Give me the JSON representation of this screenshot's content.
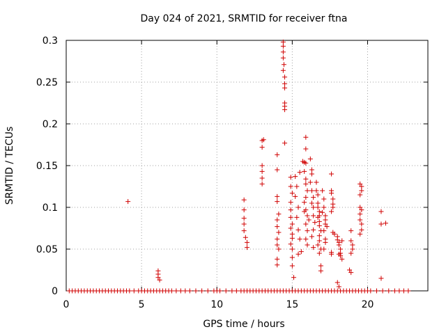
{
  "chart_data": {
    "type": "scatter",
    "title": "Day 024 of 2021, SRMTID for receiver ftna",
    "xlabel": "GPS time / hours",
    "ylabel": "SRMTID / TECUs",
    "xlim": [
      0,
      24
    ],
    "ylim": [
      0,
      0.3
    ],
    "xticks": [
      0,
      5,
      10,
      15,
      20
    ],
    "yticks": [
      0,
      0.05,
      0.1,
      0.15,
      0.2,
      0.25,
      0.3
    ],
    "xtick_labels": [
      "0",
      "5",
      "10",
      "15",
      "20"
    ],
    "ytick_labels": [
      "0",
      "0.05",
      "0.1",
      "0.15",
      "0.2",
      "0.25",
      "0.3"
    ],
    "grid": true,
    "marker": "+",
    "series": [
      {
        "name": "SRMTID",
        "color": "#d00000",
        "points": [
          [
            0.2,
            0
          ],
          [
            0.4,
            0
          ],
          [
            0.6,
            0
          ],
          [
            0.8,
            0
          ],
          [
            1.0,
            0
          ],
          [
            1.2,
            0
          ],
          [
            1.4,
            0
          ],
          [
            1.6,
            0
          ],
          [
            1.8,
            0
          ],
          [
            2.0,
            0
          ],
          [
            2.2,
            0
          ],
          [
            2.4,
            0
          ],
          [
            2.6,
            0
          ],
          [
            2.8,
            0
          ],
          [
            3.0,
            0
          ],
          [
            3.2,
            0
          ],
          [
            3.4,
            0
          ],
          [
            3.6,
            0
          ],
          [
            3.8,
            0
          ],
          [
            4.0,
            0
          ],
          [
            4.2,
            0
          ],
          [
            4.5,
            0
          ],
          [
            4.8,
            0
          ],
          [
            5.0,
            0
          ],
          [
            5.2,
            0
          ],
          [
            5.4,
            0
          ],
          [
            5.6,
            0
          ],
          [
            5.8,
            0
          ],
          [
            6.0,
            0
          ],
          [
            6.2,
            0
          ],
          [
            6.4,
            0
          ],
          [
            6.6,
            0
          ],
          [
            6.8,
            0
          ],
          [
            7.0,
            0
          ],
          [
            7.3,
            0
          ],
          [
            7.6,
            0
          ],
          [
            7.9,
            0
          ],
          [
            8.2,
            0
          ],
          [
            8.6,
            0
          ],
          [
            9.0,
            0
          ],
          [
            9.4,
            0
          ],
          [
            9.8,
            0
          ],
          [
            10.0,
            0
          ],
          [
            10.2,
            0
          ],
          [
            10.6,
            0
          ],
          [
            11.0,
            0
          ],
          [
            11.3,
            0
          ],
          [
            11.6,
            0
          ],
          [
            11.8,
            0
          ],
          [
            12.0,
            0
          ],
          [
            12.2,
            0
          ],
          [
            12.4,
            0
          ],
          [
            12.6,
            0
          ],
          [
            12.8,
            0
          ],
          [
            13.0,
            0
          ],
          [
            13.2,
            0
          ],
          [
            13.4,
            0
          ],
          [
            13.6,
            0
          ],
          [
            13.8,
            0
          ],
          [
            14.0,
            0
          ],
          [
            14.2,
            0
          ],
          [
            14.4,
            0
          ],
          [
            14.6,
            0
          ],
          [
            14.8,
            0
          ],
          [
            15.0,
            0
          ],
          [
            15.2,
            0
          ],
          [
            15.4,
            0
          ],
          [
            15.6,
            0
          ],
          [
            15.8,
            0
          ],
          [
            16.0,
            0
          ],
          [
            16.2,
            0
          ],
          [
            16.4,
            0
          ],
          [
            16.6,
            0
          ],
          [
            16.8,
            0
          ],
          [
            17.0,
            0
          ],
          [
            17.2,
            0
          ],
          [
            17.4,
            0
          ],
          [
            17.6,
            0
          ],
          [
            17.8,
            0
          ],
          [
            18.0,
            0
          ],
          [
            18.2,
            0
          ],
          [
            18.4,
            0
          ],
          [
            18.6,
            0
          ],
          [
            18.8,
            0
          ],
          [
            19.0,
            0
          ],
          [
            19.2,
            0
          ],
          [
            19.4,
            0
          ],
          [
            19.6,
            0
          ],
          [
            19.8,
            0
          ],
          [
            20.0,
            0
          ],
          [
            20.2,
            0
          ],
          [
            20.6,
            0
          ],
          [
            21.0,
            0
          ],
          [
            21.4,
            0
          ],
          [
            21.8,
            0
          ],
          [
            22.1,
            0
          ],
          [
            22.4,
            0
          ],
          [
            22.7,
            0
          ],
          [
            4.1,
            0.107
          ],
          [
            6.1,
            0.024
          ],
          [
            6.1,
            0.02
          ],
          [
            6.1,
            0.016
          ],
          [
            6.2,
            0.013
          ],
          [
            11.8,
            0.109
          ],
          [
            11.8,
            0.097
          ],
          [
            11.8,
            0.087
          ],
          [
            11.8,
            0.08
          ],
          [
            11.8,
            0.072
          ],
          [
            11.9,
            0.064
          ],
          [
            12.0,
            0.058
          ],
          [
            12.0,
            0.052
          ],
          [
            13.0,
            0.18
          ],
          [
            13.1,
            0.181
          ],
          [
            13.0,
            0.172
          ],
          [
            13.0,
            0.15
          ],
          [
            13.0,
            0.143
          ],
          [
            13.0,
            0.135
          ],
          [
            13.0,
            0.128
          ],
          [
            14.0,
            0.163
          ],
          [
            14.0,
            0.145
          ],
          [
            14.0,
            0.113
          ],
          [
            14.0,
            0.107
          ],
          [
            14.1,
            0.092
          ],
          [
            14.0,
            0.085
          ],
          [
            14.0,
            0.077
          ],
          [
            14.1,
            0.07
          ],
          [
            14.0,
            0.062
          ],
          [
            14.0,
            0.055
          ],
          [
            14.1,
            0.05
          ],
          [
            14.0,
            0.038
          ],
          [
            14.0,
            0.031
          ],
          [
            14.4,
            0.298
          ],
          [
            14.4,
            0.293
          ],
          [
            14.4,
            0.286
          ],
          [
            14.4,
            0.279
          ],
          [
            14.45,
            0.271
          ],
          [
            14.4,
            0.264
          ],
          [
            14.5,
            0.256
          ],
          [
            14.5,
            0.248
          ],
          [
            14.5,
            0.243
          ],
          [
            14.5,
            0.225
          ],
          [
            14.5,
            0.221
          ],
          [
            14.5,
            0.217
          ],
          [
            14.5,
            0.177
          ],
          [
            14.9,
            0.136
          ],
          [
            14.9,
            0.125
          ],
          [
            15.0,
            0.117
          ],
          [
            14.9,
            0.106
          ],
          [
            14.9,
            0.097
          ],
          [
            14.9,
            0.088
          ],
          [
            15.0,
            0.08
          ],
          [
            14.9,
            0.075
          ],
          [
            15.0,
            0.068
          ],
          [
            15.0,
            0.063
          ],
          [
            14.9,
            0.056
          ],
          [
            15.0,
            0.05
          ],
          [
            15.0,
            0.04
          ],
          [
            15.0,
            0.03
          ],
          [
            15.1,
            0.016
          ],
          [
            15.2,
            0.137
          ],
          [
            15.3,
            0.125
          ],
          [
            15.2,
            0.113
          ],
          [
            15.4,
            0.1
          ],
          [
            15.3,
            0.088
          ],
          [
            15.4,
            0.073
          ],
          [
            15.5,
            0.062
          ],
          [
            15.6,
            0.047
          ],
          [
            15.4,
            0.044
          ],
          [
            15.5,
            0.142
          ],
          [
            15.7,
            0.155
          ],
          [
            15.8,
            0.154
          ],
          [
            15.9,
            0.153
          ],
          [
            15.8,
            0.143
          ],
          [
            15.9,
            0.134
          ],
          [
            15.9,
            0.128
          ],
          [
            16.0,
            0.12
          ],
          [
            15.9,
            0.112
          ],
          [
            15.8,
            0.106
          ],
          [
            15.9,
            0.097
          ],
          [
            16.0,
            0.09
          ],
          [
            15.9,
            0.08
          ],
          [
            16.0,
            0.072
          ],
          [
            15.9,
            0.062
          ],
          [
            16.0,
            0.055
          ],
          [
            15.9,
            0.184
          ],
          [
            15.9,
            0.17
          ],
          [
            15.8,
            0.095
          ],
          [
            16.1,
            0.085
          ],
          [
            16.2,
            0.158
          ],
          [
            16.3,
            0.145
          ],
          [
            16.3,
            0.14
          ],
          [
            16.2,
            0.13
          ],
          [
            16.3,
            0.12
          ],
          [
            16.4,
            0.112
          ],
          [
            16.3,
            0.105
          ],
          [
            16.4,
            0.1
          ],
          [
            16.4,
            0.09
          ],
          [
            16.5,
            0.082
          ],
          [
            16.4,
            0.073
          ],
          [
            16.3,
            0.065
          ],
          [
            16.4,
            0.052
          ],
          [
            16.6,
            0.13
          ],
          [
            16.6,
            0.12
          ],
          [
            16.7,
            0.115
          ],
          [
            16.7,
            0.105
          ],
          [
            16.7,
            0.1
          ],
          [
            16.8,
            0.095
          ],
          [
            16.8,
            0.09
          ],
          [
            16.7,
            0.088
          ],
          [
            16.8,
            0.083
          ],
          [
            16.8,
            0.078
          ],
          [
            16.9,
            0.072
          ],
          [
            16.8,
            0.066
          ],
          [
            16.8,
            0.06
          ],
          [
            16.7,
            0.055
          ],
          [
            16.9,
            0.05
          ],
          [
            16.8,
            0.045
          ],
          [
            16.9,
            0.03
          ],
          [
            16.9,
            0.024
          ],
          [
            17.0,
            0.12
          ],
          [
            17.1,
            0.11
          ],
          [
            17.1,
            0.1
          ],
          [
            17.0,
            0.094
          ],
          [
            17.2,
            0.09
          ],
          [
            17.2,
            0.085
          ],
          [
            17.2,
            0.08
          ],
          [
            17.3,
            0.077
          ],
          [
            17.1,
            0.072
          ],
          [
            17.2,
            0.062
          ],
          [
            17.2,
            0.058
          ],
          [
            17.1,
            0.05
          ],
          [
            17.6,
            0.14
          ],
          [
            17.6,
            0.12
          ],
          [
            17.6,
            0.117
          ],
          [
            17.7,
            0.11
          ],
          [
            17.7,
            0.104
          ],
          [
            17.7,
            0.1
          ],
          [
            17.6,
            0.095
          ],
          [
            17.7,
            0.07
          ],
          [
            17.8,
            0.068
          ],
          [
            17.6,
            0.046
          ],
          [
            17.6,
            0.044
          ],
          [
            18.0,
            0.061
          ],
          [
            18.1,
            0.058
          ],
          [
            18.1,
            0.055
          ],
          [
            18.2,
            0.05
          ],
          [
            18.2,
            0.045
          ],
          [
            18.3,
            0.06
          ],
          [
            18.1,
            0.044
          ],
          [
            18.2,
            0.042
          ],
          [
            18.3,
            0.038
          ],
          [
            18.0,
            0.065
          ],
          [
            18.0,
            0.01
          ],
          [
            18.1,
            0.005
          ],
          [
            18.9,
            0.072
          ],
          [
            18.9,
            0.06
          ],
          [
            19.0,
            0.055
          ],
          [
            19.0,
            0.05
          ],
          [
            18.9,
            0.045
          ],
          [
            18.8,
            0.025
          ],
          [
            18.9,
            0.022
          ],
          [
            19.5,
            0.128
          ],
          [
            19.6,
            0.125
          ],
          [
            19.5,
            0.115
          ],
          [
            19.5,
            0.1
          ],
          [
            19.6,
            0.097
          ],
          [
            19.5,
            0.092
          ],
          [
            19.5,
            0.085
          ],
          [
            19.6,
            0.08
          ],
          [
            19.6,
            0.073
          ],
          [
            19.5,
            0.068
          ],
          [
            19.6,
            0.12
          ],
          [
            20.9,
            0.095
          ],
          [
            20.9,
            0.08
          ],
          [
            21.2,
            0.081
          ],
          [
            20.9,
            0.015
          ]
        ]
      }
    ]
  }
}
